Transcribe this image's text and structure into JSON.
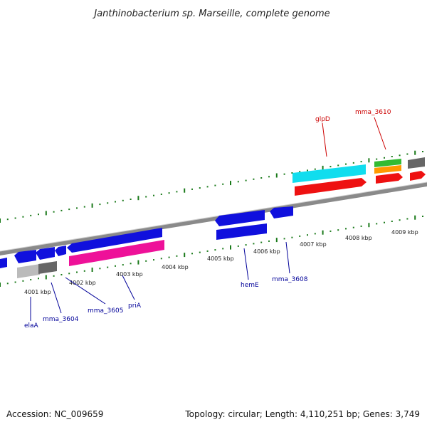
{
  "title": "Janthinobacterium sp. Marseille, complete genome",
  "footer": {
    "accession": "Accession: NC_009659",
    "topology": "Topology: circular; Length: 4,110,251 bp; Genes: 3,749"
  },
  "ruler": {
    "ticks": [
      {
        "label": "4001 kbp"
      },
      {
        "label": "4002 kbp"
      },
      {
        "label": "4003 kbp"
      },
      {
        "label": "4004 kbp"
      },
      {
        "label": "4005 kbp"
      },
      {
        "label": "4006 kbp"
      },
      {
        "label": "4007 kbp"
      },
      {
        "label": "4008 kbp"
      },
      {
        "label": "4009 kbp"
      }
    ]
  },
  "genes": [
    {
      "name": "elaA",
      "color": "#000099"
    },
    {
      "name": "mma_3604",
      "color": "#000099"
    },
    {
      "name": "mma_3605",
      "color": "#000099"
    },
    {
      "name": "priA",
      "color": "#000099"
    },
    {
      "name": "hemE",
      "color": "#000099"
    },
    {
      "name": "mma_3608",
      "color": "#000099"
    },
    {
      "name": "glpD",
      "color": "#cc0000"
    },
    {
      "name": "mma_3610",
      "color": "#cc0000"
    }
  ],
  "colors": {
    "backbone": "#8a8a8a",
    "tick": "#1a7a1a",
    "gene_blue": "#1010dd",
    "gene_magenta": "#ee1199",
    "gene_cyan": "#11ddee",
    "gene_red": "#ee1111",
    "gene_gray_dark": "#666666",
    "gene_gray_light": "#bbbbbb",
    "gene_green": "#33bb33",
    "gene_orange": "#ff9900"
  }
}
